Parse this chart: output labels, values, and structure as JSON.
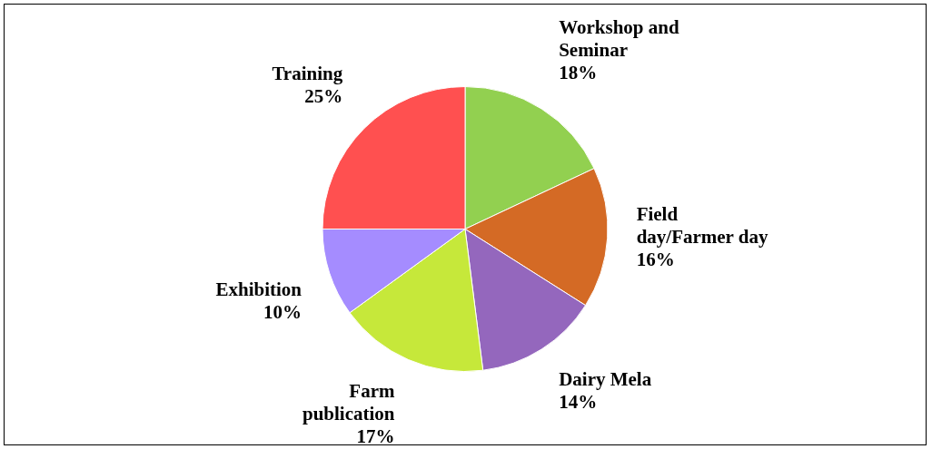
{
  "chart_data": {
    "type": "pie",
    "categories": [
      "Workshop and Seminar",
      "Field day/Farmer day",
      "Dairy Mela",
      "Farm publication",
      "Exhibition",
      "Training"
    ],
    "values": [
      18,
      16,
      14,
      17,
      10,
      25
    ],
    "value_labels": [
      "18%",
      "16%",
      "14%",
      "17%",
      "10%",
      "25%"
    ],
    "colors": [
      "#92d050",
      "#d46a25",
      "#9467bd",
      "#c6e83a",
      "#a58cff",
      "#ff5050"
    ],
    "legend": false
  }
}
